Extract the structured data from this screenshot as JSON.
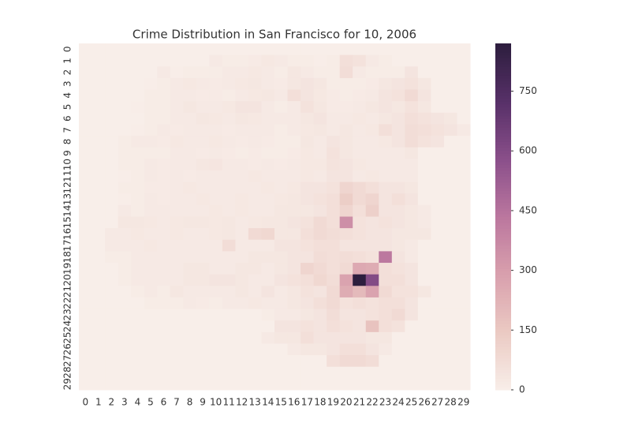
{
  "chart_data": {
    "type": "heatmap",
    "title": "Crime Distribution in San Francisco for 10, 2006",
    "categories": [
      0,
      1,
      2,
      3,
      4,
      5,
      6,
      7,
      8,
      9,
      10,
      11,
      12,
      13,
      14,
      15,
      16,
      17,
      18,
      19,
      20,
      21,
      22,
      23,
      24,
      25,
      26,
      27,
      28,
      29
    ],
    "y_categories": [
      0,
      1,
      2,
      3,
      4,
      5,
      6,
      7,
      8,
      9,
      10,
      11,
      12,
      13,
      14,
      15,
      16,
      17,
      18,
      19,
      20,
      21,
      22,
      23,
      24,
      25,
      26,
      27,
      28,
      29
    ],
    "values": [
      [
        0,
        0,
        0,
        0,
        0,
        0,
        0,
        0,
        0,
        0,
        0,
        0,
        0,
        0,
        0,
        0,
        0,
        0,
        0,
        0,
        0,
        0,
        0,
        0,
        0,
        0,
        0,
        0,
        0,
        0
      ],
      [
        0,
        0,
        0,
        0,
        0,
        0,
        0,
        0,
        0,
        0,
        20,
        10,
        10,
        15,
        25,
        20,
        10,
        10,
        5,
        10,
        60,
        50,
        20,
        10,
        0,
        0,
        0,
        0,
        0,
        0
      ],
      [
        0,
        0,
        0,
        0,
        0,
        0,
        20,
        5,
        10,
        10,
        10,
        20,
        20,
        25,
        20,
        10,
        30,
        20,
        10,
        10,
        70,
        20,
        10,
        10,
        10,
        40,
        0,
        0,
        0,
        0
      ],
      [
        0,
        0,
        0,
        0,
        0,
        5,
        10,
        20,
        25,
        20,
        15,
        20,
        25,
        30,
        20,
        15,
        30,
        40,
        30,
        10,
        10,
        10,
        15,
        30,
        40,
        50,
        30,
        0,
        0,
        0
      ],
      [
        0,
        0,
        0,
        0,
        0,
        10,
        10,
        20,
        20,
        15,
        15,
        10,
        20,
        25,
        30,
        20,
        60,
        40,
        25,
        15,
        10,
        15,
        20,
        40,
        50,
        80,
        40,
        0,
        0,
        0
      ],
      [
        0,
        0,
        0,
        0,
        5,
        10,
        10,
        20,
        30,
        20,
        20,
        25,
        40,
        40,
        20,
        10,
        20,
        50,
        30,
        15,
        15,
        20,
        30,
        40,
        30,
        50,
        30,
        0,
        0,
        0
      ],
      [
        0,
        0,
        0,
        0,
        0,
        10,
        10,
        20,
        20,
        30,
        25,
        20,
        30,
        25,
        20,
        20,
        20,
        30,
        40,
        20,
        20,
        25,
        20,
        30,
        40,
        60,
        50,
        40,
        30,
        0
      ],
      [
        0,
        0,
        0,
        0,
        5,
        10,
        20,
        15,
        20,
        20,
        20,
        15,
        20,
        20,
        20,
        10,
        20,
        25,
        30,
        20,
        30,
        20,
        25,
        60,
        40,
        70,
        60,
        50,
        40,
        20
      ],
      [
        0,
        0,
        0,
        10,
        20,
        20,
        15,
        25,
        20,
        20,
        25,
        20,
        15,
        20,
        15,
        10,
        10,
        30,
        20,
        40,
        30,
        20,
        20,
        25,
        40,
        70,
        50,
        40,
        0,
        0
      ],
      [
        0,
        0,
        0,
        10,
        10,
        10,
        10,
        20,
        20,
        15,
        20,
        15,
        10,
        15,
        10,
        10,
        15,
        25,
        20,
        50,
        30,
        20,
        20,
        20,
        20,
        30,
        0,
        0,
        0,
        0
      ],
      [
        0,
        0,
        0,
        10,
        10,
        20,
        15,
        20,
        20,
        30,
        35,
        20,
        20,
        15,
        20,
        15,
        20,
        25,
        25,
        45,
        40,
        25,
        20,
        20,
        20,
        20,
        0,
        0,
        0,
        0
      ],
      [
        0,
        0,
        0,
        5,
        10,
        20,
        15,
        20,
        15,
        20,
        20,
        20,
        20,
        25,
        20,
        20,
        20,
        25,
        20,
        40,
        40,
        20,
        25,
        20,
        20,
        20,
        0,
        0,
        0,
        0
      ],
      [
        0,
        0,
        0,
        10,
        10,
        15,
        15,
        20,
        25,
        20,
        20,
        20,
        20,
        20,
        25,
        20,
        25,
        40,
        40,
        50,
        100,
        80,
        60,
        40,
        40,
        30,
        0,
        0,
        0,
        0
      ],
      [
        0,
        0,
        0,
        5,
        10,
        20,
        15,
        20,
        20,
        25,
        20,
        20,
        25,
        20,
        20,
        25,
        30,
        40,
        50,
        60,
        130,
        80,
        100,
        40,
        60,
        40,
        0,
        0,
        0,
        0
      ],
      [
        0,
        0,
        0,
        20,
        10,
        20,
        20,
        20,
        20,
        20,
        25,
        20,
        25,
        20,
        20,
        30,
        30,
        30,
        40,
        60,
        100,
        60,
        120,
        40,
        40,
        30,
        20,
        0,
        0,
        0
      ],
      [
        0,
        0,
        0,
        30,
        30,
        25,
        20,
        25,
        30,
        30,
        25,
        30,
        20,
        25,
        30,
        30,
        40,
        50,
        80,
        60,
        350,
        50,
        40,
        50,
        40,
        30,
        20,
        0,
        0,
        0
      ],
      [
        0,
        0,
        20,
        20,
        25,
        20,
        20,
        25,
        20,
        20,
        25,
        30,
        20,
        80,
        90,
        30,
        30,
        60,
        80,
        70,
        60,
        50,
        40,
        40,
        30,
        30,
        30,
        0,
        0,
        0
      ],
      [
        0,
        0,
        20,
        20,
        20,
        25,
        20,
        20,
        20,
        20,
        20,
        70,
        20,
        20,
        20,
        40,
        40,
        50,
        60,
        60,
        40,
        40,
        40,
        40,
        30,
        20,
        0,
        0,
        0,
        0
      ],
      [
        0,
        0,
        10,
        10,
        20,
        20,
        20,
        20,
        20,
        20,
        20,
        20,
        20,
        30,
        30,
        30,
        40,
        40,
        70,
        60,
        70,
        60,
        50,
        430,
        40,
        20,
        0,
        0,
        0,
        0
      ],
      [
        0,
        0,
        0,
        10,
        20,
        20,
        20,
        20,
        30,
        30,
        20,
        20,
        30,
        30,
        20,
        30,
        40,
        100,
        80,
        60,
        80,
        260,
        250,
        60,
        50,
        40,
        0,
        0,
        0,
        0
      ],
      [
        0,
        0,
        0,
        10,
        20,
        20,
        20,
        20,
        30,
        30,
        40,
        40,
        30,
        20,
        20,
        40,
        50,
        60,
        90,
        70,
        280,
        870,
        600,
        60,
        60,
        40,
        0,
        0,
        0,
        0
      ],
      [
        0,
        0,
        0,
        0,
        10,
        20,
        10,
        30,
        20,
        20,
        20,
        20,
        30,
        20,
        40,
        20,
        30,
        50,
        40,
        80,
        250,
        200,
        280,
        80,
        50,
        50,
        30,
        0,
        0,
        0
      ],
      [
        0,
        0,
        0,
        0,
        0,
        10,
        10,
        10,
        20,
        15,
        10,
        20,
        20,
        25,
        20,
        20,
        30,
        40,
        60,
        80,
        50,
        60,
        50,
        60,
        60,
        40,
        0,
        0,
        0,
        0
      ],
      [
        0,
        0,
        0,
        0,
        0,
        0,
        0,
        0,
        0,
        0,
        0,
        0,
        0,
        0,
        10,
        20,
        20,
        30,
        40,
        70,
        40,
        40,
        50,
        60,
        80,
        40,
        0,
        0,
        0,
        0
      ],
      [
        0,
        0,
        0,
        0,
        0,
        0,
        0,
        0,
        0,
        0,
        0,
        0,
        0,
        0,
        0,
        40,
        40,
        50,
        40,
        60,
        50,
        40,
        170,
        60,
        50,
        0,
        0,
        0,
        0,
        0
      ],
      [
        0,
        0,
        0,
        0,
        0,
        0,
        0,
        0,
        0,
        0,
        0,
        0,
        0,
        0,
        20,
        30,
        30,
        60,
        40,
        40,
        40,
        40,
        30,
        30,
        0,
        0,
        0,
        0,
        0,
        0
      ],
      [
        0,
        0,
        0,
        0,
        0,
        0,
        0,
        0,
        0,
        0,
        0,
        0,
        0,
        0,
        0,
        0,
        20,
        30,
        30,
        40,
        60,
        60,
        40,
        20,
        0,
        0,
        0,
        0,
        0,
        0
      ],
      [
        0,
        0,
        0,
        0,
        0,
        0,
        0,
        0,
        0,
        0,
        0,
        0,
        0,
        0,
        0,
        0,
        0,
        0,
        0,
        60,
        80,
        80,
        70,
        0,
        0,
        0,
        0,
        0,
        0,
        0
      ],
      [
        0,
        0,
        0,
        0,
        0,
        0,
        0,
        0,
        0,
        0,
        0,
        0,
        0,
        0,
        0,
        0,
        0,
        0,
        0,
        0,
        0,
        0,
        0,
        0,
        0,
        0,
        0,
        0,
        0,
        0
      ],
      [
        0,
        0,
        0,
        0,
        0,
        0,
        0,
        0,
        0,
        0,
        0,
        0,
        0,
        0,
        0,
        0,
        0,
        0,
        0,
        0,
        0,
        0,
        0,
        0,
        0,
        0,
        0,
        0,
        0,
        0
      ]
    ],
    "colorbar_lim": [
      0,
      870
    ],
    "colorbar_ticks": [
      0,
      150,
      300,
      450,
      600,
      750
    ],
    "colormap": [
      "#f8eee9",
      "#ebcac3",
      "#d9a0ad",
      "#bb779e",
      "#8a4f8a",
      "#573068",
      "#2d1e3e"
    ]
  }
}
